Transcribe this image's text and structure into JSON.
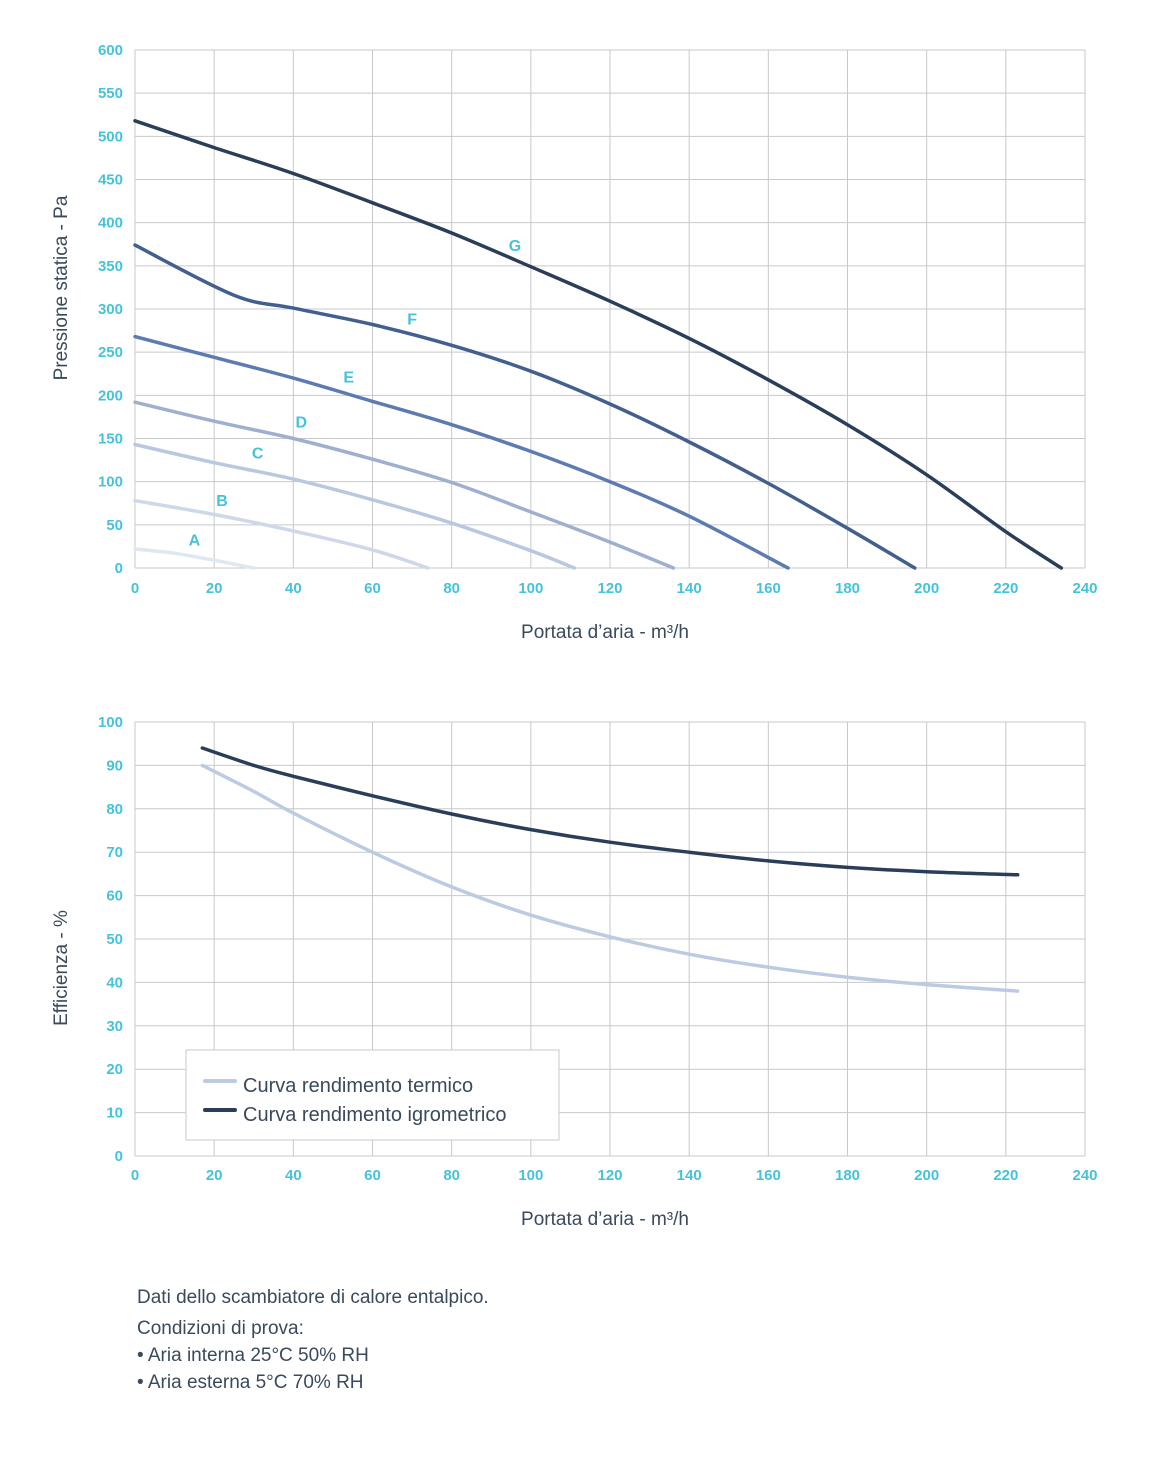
{
  "colors": {
    "tick": "#45c3d8",
    "grid": "#c7c9cc",
    "axis_title": "#3a4a5c"
  },
  "chart_data": [
    {
      "type": "line",
      "title": "",
      "xlabel": "Portata d’aria - m³/h",
      "ylabel": "Pressione statica - Pa",
      "xlim": [
        0,
        240
      ],
      "ylim": [
        0,
        600
      ],
      "xticks": [
        0,
        20,
        40,
        60,
        80,
        100,
        120,
        140,
        160,
        180,
        200,
        220,
        240
      ],
      "yticks": [
        0,
        50,
        100,
        150,
        200,
        250,
        300,
        350,
        400,
        450,
        500,
        550,
        600
      ],
      "grid": true,
      "series": [
        {
          "name": "A",
          "color": "#dfe7f1",
          "label_at": [
            15,
            26
          ],
          "x": [
            0,
            10,
            20,
            30
          ],
          "y": [
            22,
            17,
            9,
            0
          ]
        },
        {
          "name": "B",
          "color": "#cdd8e9",
          "label_at": [
            22,
            72
          ],
          "x": [
            0,
            20,
            40,
            60,
            74
          ],
          "y": [
            78,
            62,
            43,
            21,
            0
          ]
        },
        {
          "name": "C",
          "color": "#b9c7df",
          "label_at": [
            31,
            127
          ],
          "x": [
            0,
            20,
            40,
            60,
            80,
            100,
            111
          ],
          "y": [
            143,
            122,
            103,
            79,
            52,
            20,
            0
          ]
        },
        {
          "name": "D",
          "color": "#9fb0cf",
          "label_at": [
            42,
            163
          ],
          "x": [
            0,
            20,
            40,
            60,
            80,
            100,
            120,
            136
          ],
          "y": [
            192,
            170,
            150,
            126,
            99,
            65,
            30,
            0
          ]
        },
        {
          "name": "E",
          "color": "#5b7bb1",
          "label_at": [
            54,
            215
          ],
          "x": [
            0,
            20,
            40,
            60,
            80,
            100,
            120,
            140,
            165
          ],
          "y": [
            268,
            244,
            220,
            193,
            166,
            135,
            100,
            60,
            0
          ]
        },
        {
          "name": "F",
          "color": "#425f8e",
          "label_at": [
            70,
            282
          ],
          "x": [
            0,
            25,
            40,
            60,
            80,
            100,
            120,
            140,
            160,
            180,
            197
          ],
          "y": [
            374,
            316,
            301,
            282,
            258,
            228,
            190,
            146,
            98,
            46,
            0
          ]
        },
        {
          "name": "G",
          "color": "#2b3e59",
          "label_at": [
            96,
            367
          ],
          "x": [
            0,
            20,
            40,
            60,
            80,
            100,
            120,
            140,
            160,
            180,
            200,
            220,
            234
          ],
          "y": [
            518,
            487,
            457,
            423,
            388,
            349,
            309,
            266,
            218,
            166,
            108,
            42,
            0
          ]
        }
      ]
    },
    {
      "type": "line",
      "title": "",
      "xlabel": "Portata d’aria - m³/h",
      "ylabel": "Efficienza - %",
      "xlim": [
        0,
        240
      ],
      "ylim": [
        0,
        100
      ],
      "xticks": [
        0,
        20,
        40,
        60,
        80,
        100,
        120,
        140,
        160,
        180,
        200,
        220,
        240
      ],
      "yticks": [
        0,
        10,
        20,
        30,
        40,
        50,
        60,
        70,
        80,
        90,
        100
      ],
      "grid": true,
      "legend_position": "bottom-left",
      "series": [
        {
          "name": "Curva rendimento termico",
          "color": "#bccae2",
          "x": [
            17,
            30,
            40,
            60,
            80,
            100,
            120,
            140,
            160,
            180,
            200,
            223
          ],
          "y": [
            90,
            84,
            79,
            70,
            62,
            55.5,
            50.5,
            46.5,
            43.5,
            41.2,
            39.5,
            38
          ]
        },
        {
          "name": "Curva rendimento igrometrico",
          "color": "#2b3e59",
          "x": [
            17,
            30,
            40,
            60,
            80,
            100,
            120,
            140,
            160,
            180,
            200,
            223
          ],
          "y": [
            94,
            90,
            87.5,
            83,
            78.8,
            75.2,
            72.3,
            70,
            68,
            66.5,
            65.5,
            64.8
          ]
        }
      ]
    }
  ],
  "notes": {
    "line1": "Dati dello scambiatore di calore entalpico.",
    "line2": "Condizioni di prova:",
    "line3": "• Aria interna 25°C 50% RH",
    "line4": "• Aria esterna 5°C 70% RH"
  }
}
